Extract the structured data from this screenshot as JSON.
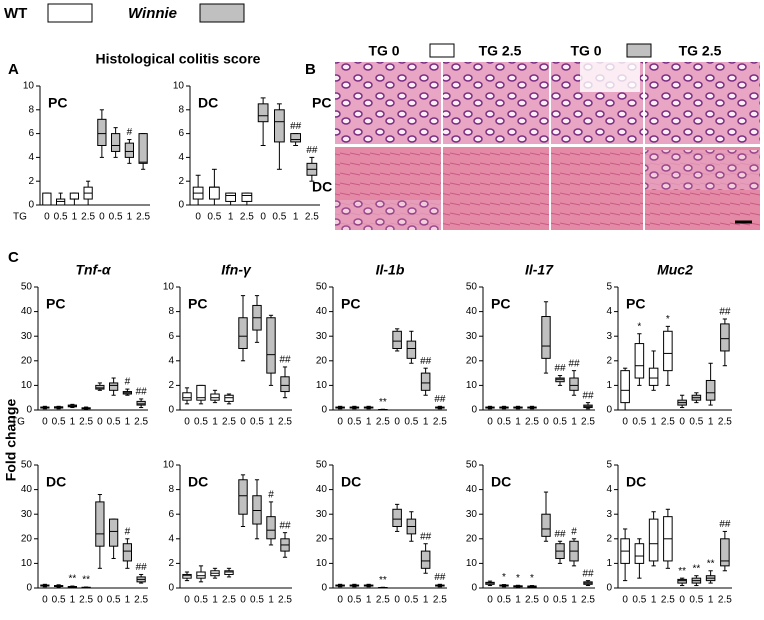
{
  "legend": [
    {
      "name": "WT",
      "color": "#ffffff"
    },
    {
      "name": "Winnie",
      "color": "#c0c0c0"
    }
  ],
  "panels": [
    "A",
    "B",
    "C"
  ],
  "figure_title": "Histological colitis score",
  "y_label": "Fold change",
  "histology": {
    "columns": [
      "TG 0",
      "TG 2.5",
      "TG 0",
      "TG 2.5"
    ],
    "rows": [
      "PC",
      "DC"
    ]
  },
  "chart_data": [
    {
      "type": "box",
      "label": "PC",
      "xlabel": "TG",
      "categories": [
        "0",
        "0.5",
        "1",
        "2.5",
        "0",
        "0.5",
        "1",
        "2.5"
      ],
      "min": [
        0,
        0,
        0,
        0,
        4,
        4,
        3.5,
        3
      ],
      "q1": [
        0,
        0,
        0.5,
        0.5,
        5,
        4.5,
        4,
        3.5
      ],
      "median": [
        0,
        0.3,
        0.5,
        1,
        6,
        5,
        4.5,
        3.6
      ],
      "q3": [
        1,
        0.5,
        1,
        1.5,
        7.2,
        6,
        5.2,
        6
      ],
      "max": [
        1,
        1,
        1,
        2,
        8,
        6.5,
        5.5,
        6
      ],
      "annotations": [
        null,
        null,
        null,
        null,
        null,
        null,
        "#",
        null
      ],
      "ylim": [
        0,
        10
      ],
      "yticks": [
        0,
        2,
        4,
        6,
        8,
        10
      ]
    },
    {
      "type": "box",
      "label": "DC",
      "categories": [
        "0",
        "0.5",
        "1",
        "2.5",
        "0",
        "0.5",
        "1",
        "2.5"
      ],
      "min": [
        0,
        0,
        0,
        0,
        5,
        3,
        5,
        2
      ],
      "q1": [
        0.5,
        0.5,
        0.3,
        0.3,
        7,
        5.3,
        5.3,
        2.5
      ],
      "median": [
        1,
        1.5,
        0.8,
        0.8,
        7.5,
        7,
        5.5,
        3
      ],
      "q3": [
        1.5,
        1.5,
        1,
        1,
        8.5,
        8,
        6,
        3.5
      ],
      "max": [
        2.5,
        3,
        1,
        1,
        9,
        8.5,
        6,
        4
      ],
      "annotations": [
        null,
        null,
        null,
        null,
        null,
        null,
        "##",
        "##"
      ],
      "ylim": [
        0,
        10
      ],
      "yticks": [
        0,
        2,
        4,
        6,
        8,
        10
      ]
    },
    {
      "type": "box",
      "title": "Tnf-α",
      "label": "PC",
      "xlabel": "TG",
      "categories": [
        "0",
        "0.5",
        "1",
        "2.5",
        "0",
        "0.5",
        "1",
        "2.5"
      ],
      "min": [
        0.5,
        0.5,
        1,
        0.3,
        8,
        6,
        6,
        1
      ],
      "q1": [
        0.8,
        0.8,
        1.3,
        0.5,
        8.5,
        8,
        6.5,
        2
      ],
      "median": [
        1,
        1,
        1.6,
        0.7,
        9,
        10,
        7,
        2.5
      ],
      "q3": [
        1.2,
        1.3,
        2,
        0.9,
        10,
        11,
        7.5,
        3.5
      ],
      "max": [
        1.5,
        1.5,
        2.3,
        1.2,
        11,
        13,
        8.5,
        4.5
      ],
      "annotations": [
        null,
        null,
        null,
        null,
        null,
        null,
        "#",
        "##"
      ],
      "ylim": [
        0,
        50
      ],
      "yticks": [
        0,
        10,
        20,
        30,
        40,
        50
      ]
    },
    {
      "type": "box",
      "title": "Ifn-γ",
      "label": "PC",
      "categories": [
        "0",
        "0.5",
        "1",
        "2.5",
        "0",
        "0.5",
        "1",
        "2.5"
      ],
      "min": [
        0.5,
        0.5,
        0.6,
        0.5,
        4,
        5.5,
        2,
        1
      ],
      "q1": [
        0.8,
        0.8,
        0.8,
        0.7,
        5,
        6.5,
        3,
        1.5
      ],
      "median": [
        1,
        1,
        1,
        1,
        6,
        7.5,
        4.5,
        2
      ],
      "q3": [
        1.4,
        2,
        1.3,
        1.2,
        7.5,
        8.5,
        7.5,
        2.7
      ],
      "max": [
        1.8,
        2,
        1.6,
        1.3,
        9.3,
        9.3,
        7.7,
        3.5
      ],
      "annotations": [
        null,
        null,
        null,
        null,
        null,
        null,
        null,
        "##"
      ],
      "ylim": [
        0,
        10
      ],
      "yticks": [
        0,
        2,
        4,
        6,
        8,
        10
      ]
    },
    {
      "type": "box",
      "title": "Il-1b",
      "label": "PC",
      "categories": [
        "0",
        "0.5",
        "1",
        "2.5",
        "0",
        "0.5",
        "1",
        "2.5"
      ],
      "min": [
        0.5,
        0.5,
        0.5,
        0,
        24,
        19,
        6,
        0.5
      ],
      "q1": [
        0.8,
        0.8,
        0.8,
        0,
        25,
        21,
        8,
        0.8
      ],
      "median": [
        1,
        1,
        1,
        0.1,
        28,
        25,
        11,
        1
      ],
      "q3": [
        1.2,
        1.2,
        1.2,
        0.2,
        32,
        28,
        15,
        1.2
      ],
      "max": [
        1.5,
        1.5,
        1.5,
        0.3,
        33,
        32,
        17,
        1.5
      ],
      "annotations": [
        null,
        null,
        null,
        "**",
        null,
        null,
        "##",
        "##"
      ],
      "ylim": [
        0,
        50
      ],
      "yticks": [
        0,
        10,
        20,
        30,
        40,
        50
      ]
    },
    {
      "type": "box",
      "title": "Il-17",
      "label": "PC",
      "categories": [
        "0",
        "0.5",
        "1",
        "2.5",
        "0",
        "0.5",
        "1",
        "2.5"
      ],
      "min": [
        0.5,
        0.5,
        0.5,
        0.5,
        15,
        10,
        6,
        0.5
      ],
      "q1": [
        0.8,
        0.8,
        0.8,
        0.8,
        21,
        11.5,
        8,
        1
      ],
      "median": [
        1,
        1,
        1,
        1,
        26,
        12.5,
        10,
        1.5
      ],
      "q3": [
        1.2,
        1.2,
        1.2,
        1.2,
        38,
        13,
        13,
        2
      ],
      "max": [
        1.5,
        1.5,
        1.5,
        1.5,
        44,
        14,
        16,
        3
      ],
      "annotations": [
        null,
        null,
        null,
        null,
        null,
        "##",
        "##",
        "##"
      ],
      "ylim": [
        0,
        50
      ],
      "yticks": [
        0,
        10,
        20,
        30,
        40,
        50
      ]
    },
    {
      "type": "box",
      "title": "Muc2",
      "label": "PC",
      "categories": [
        "0",
        "0.5",
        "1",
        "2.5",
        "0",
        "0.5",
        "1",
        "2.5"
      ],
      "min": [
        0,
        1,
        0.8,
        1,
        0.1,
        0.3,
        0.2,
        1.8
      ],
      "q1": [
        0.3,
        1.3,
        1,
        1.6,
        0.2,
        0.4,
        0.4,
        2.4
      ],
      "median": [
        0.8,
        1.8,
        1.3,
        2.3,
        0.3,
        0.5,
        0.7,
        2.9
      ],
      "q3": [
        1.6,
        2.7,
        1.7,
        3.2,
        0.4,
        0.6,
        1.2,
        3.5
      ],
      "max": [
        1.7,
        3.1,
        2.4,
        3.4,
        0.6,
        0.7,
        1.9,
        3.7
      ],
      "annotations": [
        null,
        "*",
        null,
        "*",
        null,
        null,
        null,
        "##"
      ],
      "ylim": [
        0,
        5
      ],
      "yticks": [
        0,
        1,
        2,
        3,
        4,
        5
      ]
    },
    {
      "type": "box",
      "label": "DC",
      "categories": [
        "0",
        "0.5",
        "1",
        "2.5",
        "0",
        "0.5",
        "1",
        "2.5"
      ],
      "min": [
        0.5,
        0.3,
        0.3,
        0,
        8,
        12,
        8,
        2
      ],
      "q1": [
        0.8,
        0.6,
        0.4,
        0.1,
        17,
        17,
        11,
        2.5
      ],
      "median": [
        1,
        0.8,
        0.5,
        0.2,
        22,
        23,
        15,
        3.5
      ],
      "q3": [
        1.2,
        1,
        0.6,
        0.3,
        35,
        28,
        18,
        4.5
      ],
      "max": [
        1.5,
        1.3,
        0.8,
        0.4,
        38,
        28,
        20,
        5.5
      ],
      "annotations": [
        null,
        null,
        "**",
        "**",
        null,
        null,
        "#",
        "##"
      ],
      "ylim": [
        0,
        50
      ],
      "yticks": [
        0,
        10,
        20,
        30,
        40,
        50
      ]
    },
    {
      "type": "box",
      "label": "DC",
      "categories": [
        "0",
        "0.5",
        "1",
        "2.5",
        "0",
        "0.5",
        "1",
        "2.5"
      ],
      "min": [
        0.6,
        0.5,
        0.8,
        0.9,
        5,
        4,
        3.5,
        2.5
      ],
      "q1": [
        0.8,
        0.8,
        1,
        1.1,
        6,
        5.2,
        4,
        3
      ],
      "median": [
        1,
        1,
        1.2,
        1.3,
        7.5,
        6.3,
        4.7,
        3.5
      ],
      "q3": [
        1.1,
        1.3,
        1.4,
        1.4,
        8.8,
        7.5,
        5.8,
        4
      ],
      "max": [
        1.3,
        1.8,
        1.6,
        1.6,
        9.2,
        8.8,
        7,
        4.5
      ],
      "annotations": [
        null,
        null,
        null,
        null,
        null,
        null,
        "#",
        "##"
      ],
      "ylim": [
        0,
        10
      ],
      "yticks": [
        0,
        2,
        4,
        6,
        8,
        10
      ]
    },
    {
      "type": "box",
      "label": "DC",
      "categories": [
        "0",
        "0.5",
        "1",
        "2.5",
        "0",
        "0.5",
        "1",
        "2.5"
      ],
      "min": [
        0.5,
        0.5,
        0.5,
        0,
        23,
        19,
        6,
        0.5
      ],
      "q1": [
        0.8,
        0.8,
        0.8,
        0,
        25,
        22,
        8,
        0.8
      ],
      "median": [
        1,
        1,
        1,
        0.1,
        28,
        25,
        11,
        1
      ],
      "q3": [
        1.2,
        1.2,
        1.2,
        0.2,
        32,
        28,
        15,
        1.2
      ],
      "max": [
        1.5,
        1.5,
        1.5,
        0.3,
        34,
        31,
        18,
        1.5
      ],
      "annotations": [
        null,
        null,
        null,
        "**",
        null,
        null,
        "##",
        "##"
      ],
      "ylim": [
        0,
        50
      ],
      "yticks": [
        0,
        10,
        20,
        30,
        40,
        50
      ]
    },
    {
      "type": "box",
      "label": "DC",
      "categories": [
        "0",
        "0.5",
        "1",
        "2.5",
        "0",
        "0.5",
        "1",
        "2.5"
      ],
      "min": [
        1,
        0.5,
        0.3,
        0.2,
        19,
        10,
        9,
        1
      ],
      "q1": [
        1.5,
        0.8,
        0.5,
        0.4,
        21,
        12,
        11,
        1.5
      ],
      "median": [
        2,
        1,
        0.7,
        0.6,
        24,
        15,
        15,
        2
      ],
      "q3": [
        2.3,
        1.2,
        0.9,
        0.8,
        30,
        18,
        19,
        2.5
      ],
      "max": [
        2.8,
        1.4,
        1.1,
        1,
        39,
        19,
        20,
        3
      ],
      "annotations": [
        null,
        "*",
        "*",
        "*",
        null,
        "##",
        "#",
        "##"
      ],
      "ylim": [
        0,
        50
      ],
      "yticks": [
        0,
        10,
        20,
        30,
        40,
        50
      ]
    },
    {
      "type": "box",
      "label": "DC",
      "categories": [
        "0",
        "0.5",
        "1",
        "2.5",
        "0",
        "0.5",
        "1",
        "2.5"
      ],
      "min": [
        0.3,
        0.4,
        0.9,
        0.8,
        0.1,
        0.1,
        0.2,
        0.7
      ],
      "q1": [
        1,
        1,
        1.1,
        1.1,
        0.2,
        0.2,
        0.3,
        0.9
      ],
      "median": [
        1.5,
        1.3,
        1.8,
        2,
        0.3,
        0.3,
        0.4,
        1.1
      ],
      "q3": [
        2,
        1.8,
        2.8,
        2.9,
        0.35,
        0.4,
        0.5,
        2
      ],
      "max": [
        2.4,
        2,
        3.1,
        3.2,
        0.4,
        0.5,
        0.7,
        2.3
      ],
      "annotations": [
        null,
        null,
        null,
        null,
        "**",
        "**",
        "**",
        "##"
      ],
      "ylim": [
        0,
        5
      ],
      "yticks": [
        0,
        1,
        2,
        3,
        4,
        5
      ]
    }
  ]
}
